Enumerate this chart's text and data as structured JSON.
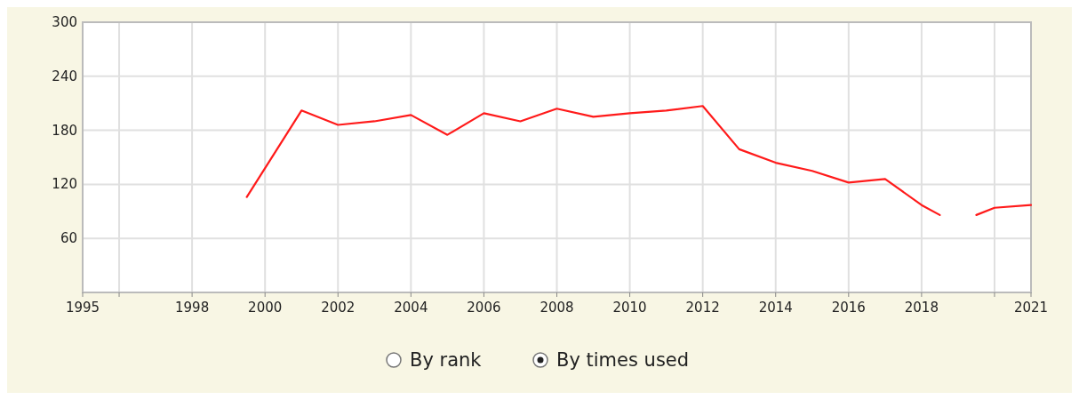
{
  "chart_data": {
    "type": "line",
    "series": [
      {
        "color": "#ff1a1a",
        "x": [
          1999.5,
          2001,
          2002,
          2003,
          2004,
          2005,
          2006,
          2007,
          2008,
          2009,
          2010,
          2011,
          2012,
          2013,
          2014,
          2015,
          2016,
          2017,
          2018,
          2018.5
        ],
        "values": [
          106,
          202,
          186,
          190,
          197,
          175,
          199,
          190,
          204,
          195,
          199,
          202,
          207,
          159,
          144,
          135,
          122,
          126,
          97,
          86
        ]
      },
      {
        "color": "#ff1a1a",
        "x": [
          2019.5,
          2020,
          2021
        ],
        "values": [
          86,
          94,
          97
        ]
      }
    ],
    "xlim": [
      1995,
      2021
    ],
    "xticks": [
      1995,
      {
        "value": 1996,
        "label": null
      },
      1998,
      2000,
      2002,
      2004,
      2006,
      2008,
      2010,
      2012,
      2014,
      2016,
      2018,
      {
        "value": 2020,
        "label": null
      },
      2021
    ],
    "ylim": [
      0,
      300
    ],
    "yticks": [
      60,
      120,
      180,
      240,
      300
    ],
    "grid": true,
    "annotations": [
      "By rank",
      "By times used"
    ]
  }
}
